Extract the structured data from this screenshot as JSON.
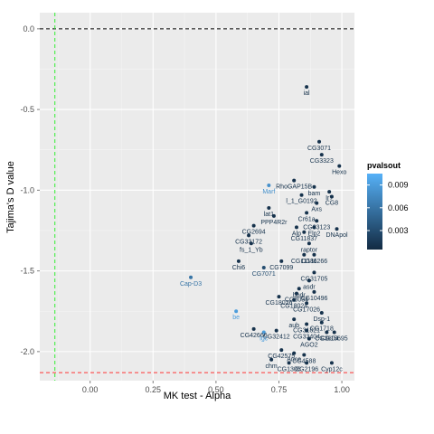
{
  "chart_data": {
    "type": "scatter",
    "xlabel": "MK test - Alpha",
    "ylabel": "Tajima's D value",
    "xlim": [
      -0.2,
      1.05
    ],
    "ylim": [
      -2.18,
      0.1
    ],
    "x_ticks": [
      0.0,
      0.25,
      0.5,
      0.75,
      1.0
    ],
    "x_tick_labels": [
      "0.00",
      "0.25",
      "0.50",
      "0.75",
      "1.00"
    ],
    "y_ticks": [
      0.0,
      -0.5,
      -1.0,
      -1.5,
      -2.0
    ],
    "y_tick_labels": [
      "0.0",
      "-0.5",
      "-1.0",
      "-1.5",
      "-2.0"
    ],
    "reference_lines": {
      "horizontal_black": 0.0,
      "horizontal_red": -2.13,
      "vertical_green": -0.14
    },
    "line_colors": {
      "black": "#000000",
      "red": "#ff3333",
      "green": "#33ee33"
    },
    "panel_background": "#ebebeb",
    "grid": true,
    "legend": {
      "title": "pvalsout",
      "position": "right",
      "ticks": [
        0.009,
        0.006,
        0.003
      ],
      "tick_labels": [
        "0.009",
        "0.006",
        "0.003"
      ],
      "range": [
        0.0005,
        0.0105
      ],
      "color_low": "#132b43",
      "color_high": "#56b1f7"
    },
    "points": [
      {
        "x": 0.86,
        "y": -0.36,
        "label": "ial",
        "p": 0.001
      },
      {
        "x": 0.91,
        "y": -0.7,
        "label": "CG3071",
        "p": 0.001
      },
      {
        "x": 0.92,
        "y": -0.78,
        "label": "CG3323",
        "p": 0.001
      },
      {
        "x": 0.99,
        "y": -0.85,
        "label": "Hexo",
        "p": 0.001
      },
      {
        "x": 0.81,
        "y": -0.94,
        "label": "RhoGAP15B",
        "p": 0.001
      },
      {
        "x": 0.71,
        "y": -0.97,
        "label": "Marf",
        "p": 0.008
      },
      {
        "x": 0.89,
        "y": -0.98,
        "label": "bam",
        "p": 0.001
      },
      {
        "x": 0.95,
        "y": -1.01,
        "label": "Ir7",
        "p": 0.001
      },
      {
        "x": 0.84,
        "y": -1.03,
        "label": "l_1_G0192",
        "p": 0.001
      },
      {
        "x": 0.96,
        "y": -1.04,
        "label": "CG8",
        "p": 0.001
      },
      {
        "x": 0.9,
        "y": -1.08,
        "label": "Axs",
        "p": 0.001
      },
      {
        "x": 0.71,
        "y": -1.11,
        "label": "lat1",
        "p": 0.001
      },
      {
        "x": 0.86,
        "y": -1.14,
        "label": "Cr61a",
        "p": 0.001
      },
      {
        "x": 0.73,
        "y": -1.16,
        "label": "PPP4R2r",
        "p": 0.001
      },
      {
        "x": 0.9,
        "y": -1.19,
        "label": "CG33123",
        "p": 0.001
      },
      {
        "x": 0.65,
        "y": -1.22,
        "label": "CG2694",
        "p": 0.001
      },
      {
        "x": 0.82,
        "y": -1.23,
        "label": "Alp",
        "p": 0.001
      },
      {
        "x": 0.89,
        "y": -1.23,
        "label": "Elp2",
        "p": 0.001
      },
      {
        "x": 0.98,
        "y": -1.24,
        "label": "DNApol",
        "p": 0.001
      },
      {
        "x": 0.85,
        "y": -1.26,
        "label": "CG11837",
        "p": 0.001
      },
      {
        "x": 0.63,
        "y": -1.28,
        "label": "CG33172",
        "p": 0.001
      },
      {
        "x": 0.64,
        "y": -1.33,
        "label": "fs_1_Yb",
        "p": 0.001
      },
      {
        "x": 0.87,
        "y": -1.33,
        "label": "raptor",
        "p": 0.001
      },
      {
        "x": 0.85,
        "y": -1.4,
        "label": "CG11186",
        "p": 0.001
      },
      {
        "x": 0.89,
        "y": -1.4,
        "label": "CG11266",
        "p": 0.001
      },
      {
        "x": 0.59,
        "y": -1.44,
        "label": "Chi6",
        "p": 0.001
      },
      {
        "x": 0.76,
        "y": -1.44,
        "label": "CG7099",
        "p": 0.001
      },
      {
        "x": 0.69,
        "y": -1.48,
        "label": "CG7071",
        "p": 0.003
      },
      {
        "x": 0.89,
        "y": -1.51,
        "label": "CG31705",
        "p": 0.001
      },
      {
        "x": 0.4,
        "y": -1.54,
        "label": "Cap-D3",
        "p": 0.006
      },
      {
        "x": 0.87,
        "y": -1.56,
        "label": "asdr",
        "p": 0.001
      },
      {
        "x": 0.83,
        "y": -1.61,
        "label": "bpdr",
        "p": 0.001
      },
      {
        "x": 0.89,
        "y": -1.63,
        "label": "CG10496",
        "p": 0.001
      },
      {
        "x": 0.82,
        "y": -1.64,
        "label": "CG8034",
        "p": 0.001
      },
      {
        "x": 0.75,
        "y": -1.66,
        "label": "CG18026",
        "p": 0.001
      },
      {
        "x": 0.81,
        "y": -1.68,
        "label": "CG18024",
        "p": 0.001
      },
      {
        "x": 0.86,
        "y": -1.7,
        "label": "CG17026",
        "p": 0.001
      },
      {
        "x": 0.58,
        "y": -1.75,
        "label": "be",
        "p": 0.009
      },
      {
        "x": 0.92,
        "y": -1.76,
        "label": "Dsp-1",
        "p": 0.001
      },
      {
        "x": 0.81,
        "y": -1.8,
        "label": "aub",
        "p": 0.001
      },
      {
        "x": 0.92,
        "y": -1.82,
        "label": "CG1718",
        "p": 0.001
      },
      {
        "x": 0.86,
        "y": -1.83,
        "label": "CG31821",
        "p": 0.001
      },
      {
        "x": 0.65,
        "y": -1.86,
        "label": "CG42666",
        "p": 0.001
      },
      {
        "x": 0.74,
        "y": -1.87,
        "label": "CG32412",
        "p": 0.001
      },
      {
        "x": 0.69,
        "y": -1.88,
        "label": "lgc",
        "p": 0.009
      },
      {
        "x": 0.86,
        "y": -1.87,
        "label": "CG33404",
        "p": 0.001
      },
      {
        "x": 0.94,
        "y": -1.88,
        "label": "CG3604",
        "p": 0.001
      },
      {
        "x": 0.97,
        "y": -1.88,
        "label": "CG15695",
        "p": 0.001
      },
      {
        "x": 0.87,
        "y": -1.92,
        "label": "AGO2",
        "p": 0.001
      },
      {
        "x": 0.76,
        "y": -1.99,
        "label": "CG42575",
        "p": 0.001
      },
      {
        "x": 0.81,
        "y": -2.01,
        "label": "Ance",
        "p": 0.001
      },
      {
        "x": 0.85,
        "y": -2.02,
        "label": "CG4588",
        "p": 0.001
      },
      {
        "x": 0.72,
        "y": -2.05,
        "label": "chm",
        "p": 0.001
      },
      {
        "x": 0.79,
        "y": -2.07,
        "label": "CG1306",
        "p": 0.001
      },
      {
        "x": 0.86,
        "y": -2.07,
        "label": "CG2196",
        "p": 0.001
      },
      {
        "x": 0.96,
        "y": -2.07,
        "label": "Cyp12c",
        "p": 0.001
      }
    ]
  }
}
